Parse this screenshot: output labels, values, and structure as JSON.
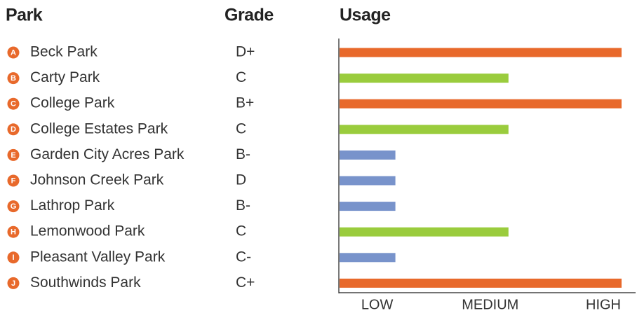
{
  "chart_data": {
    "type": "bar",
    "orientation": "horizontal",
    "columns": [
      "Park",
      "Grade",
      "Usage"
    ],
    "letters": [
      "A",
      "B",
      "C",
      "D",
      "E",
      "F",
      "G",
      "H",
      "I",
      "J"
    ],
    "categories": [
      "Beck Park",
      "Carty Park",
      "College Park",
      "College Estates Park",
      "Garden City Acres Park",
      "Johnson Creek Park",
      "Lathrop Park",
      "Lemonwood Park",
      "Pleasant Valley Park",
      "Southwinds Park"
    ],
    "grades": [
      "D+",
      "C",
      "B+",
      "C",
      "B-",
      "D",
      "B-",
      "C",
      "C-",
      "C+"
    ],
    "values": [
      3,
      2,
      3,
      2,
      1,
      1,
      1,
      2,
      1,
      3
    ],
    "xlim": [
      0.5,
      3
    ],
    "xticks": [
      {
        "value": 1,
        "label": "LOW",
        "color": "#7893cb"
      },
      {
        "value": 2,
        "label": "MEDIUM",
        "color": "#9acc3d"
      },
      {
        "value": 3,
        "label": "HIGH",
        "color": "#e8692b"
      }
    ],
    "letter_color": "#e8692b",
    "grid": false
  }
}
